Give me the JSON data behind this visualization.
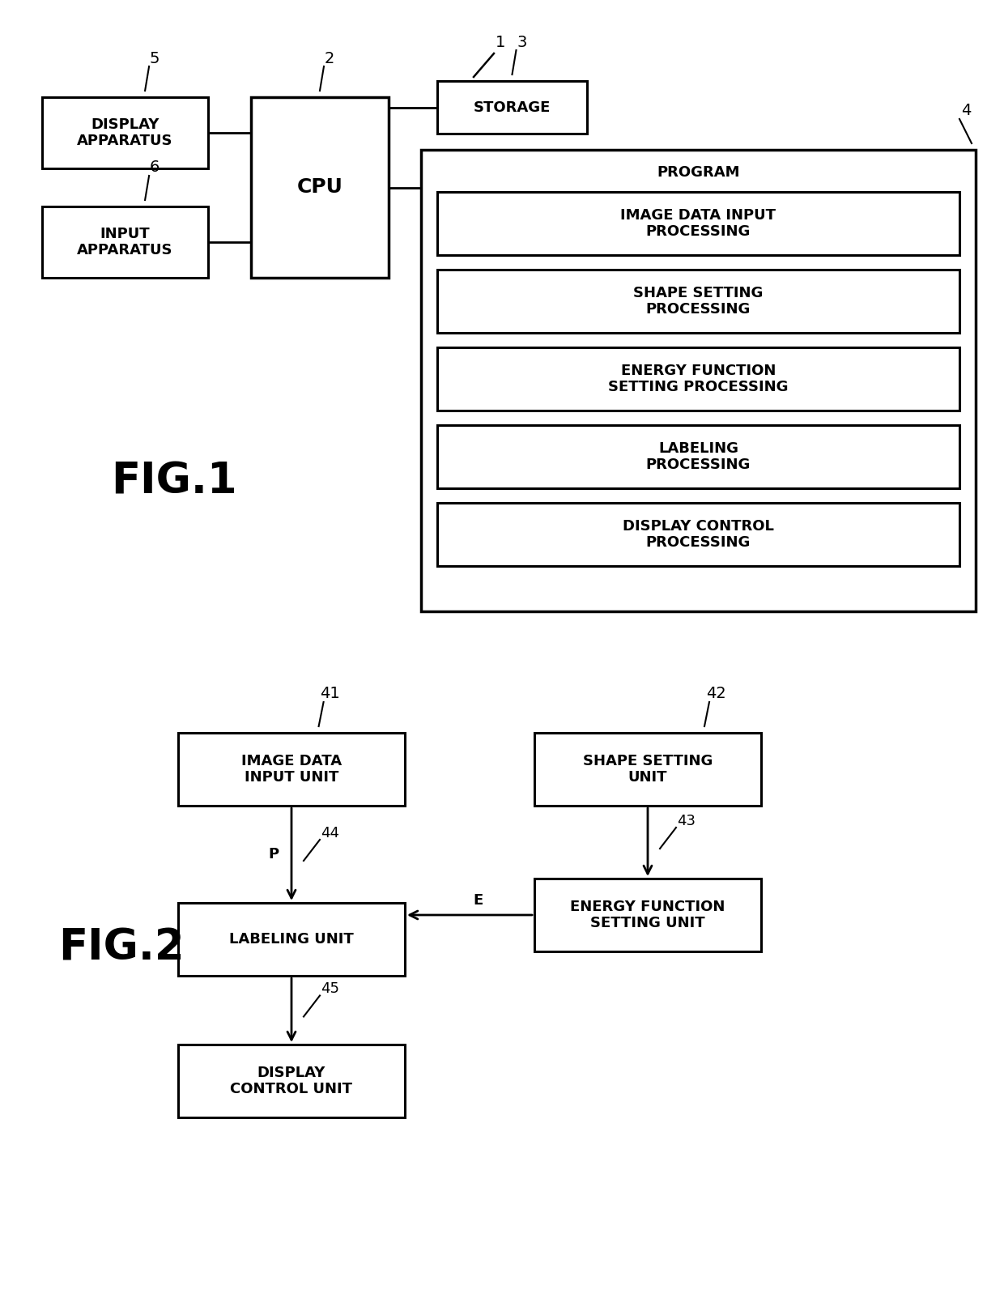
{
  "fig1": {
    "title": "FIG.1",
    "system_num": "1",
    "disp": {
      "label": "DISPLAY\nAPPARATUS",
      "num": "5"
    },
    "inp": {
      "label": "INPUT\nAPPARATUS",
      "num": "6"
    },
    "cpu": {
      "label": "CPU",
      "num": "2"
    },
    "stor": {
      "label": "STORAGE",
      "num": "3"
    },
    "prog_outer": {
      "label": "PROGRAM",
      "num": "4"
    },
    "prog_boxes": [
      "IMAGE DATA INPUT\nPROCESSING",
      "SHAPE SETTING\nPROCESSING",
      "ENERGY FUNCTION\nSETTING PROCESSING",
      "LABELING\nPROCESSING",
      "DISPLAY CONTROL\nPROCESSING"
    ]
  },
  "fig2": {
    "title": "FIG.2",
    "boxes": [
      {
        "label": "IMAGE DATA\nINPUT UNIT",
        "num": "41"
      },
      {
        "label": "SHAPE SETTING\nUNIT",
        "num": "42"
      },
      {
        "label": "LABELING UNIT",
        "num": "44"
      },
      {
        "label": "ENERGY FUNCTION\nSETTING UNIT",
        "num": "43"
      },
      {
        "label": "DISPLAY\nCONTROL UNIT",
        "num": "45"
      }
    ],
    "arrow_p": "P",
    "arrow_e": "E"
  },
  "bg": "#ffffff",
  "black": "#000000"
}
